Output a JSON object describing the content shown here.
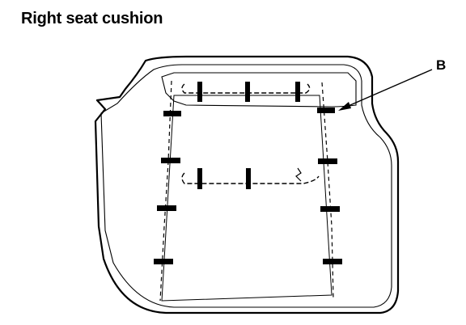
{
  "title": "Right seat cushion",
  "callout": {
    "label": "B"
  },
  "colors": {
    "ink": "#000000",
    "background": "#ffffff"
  }
}
